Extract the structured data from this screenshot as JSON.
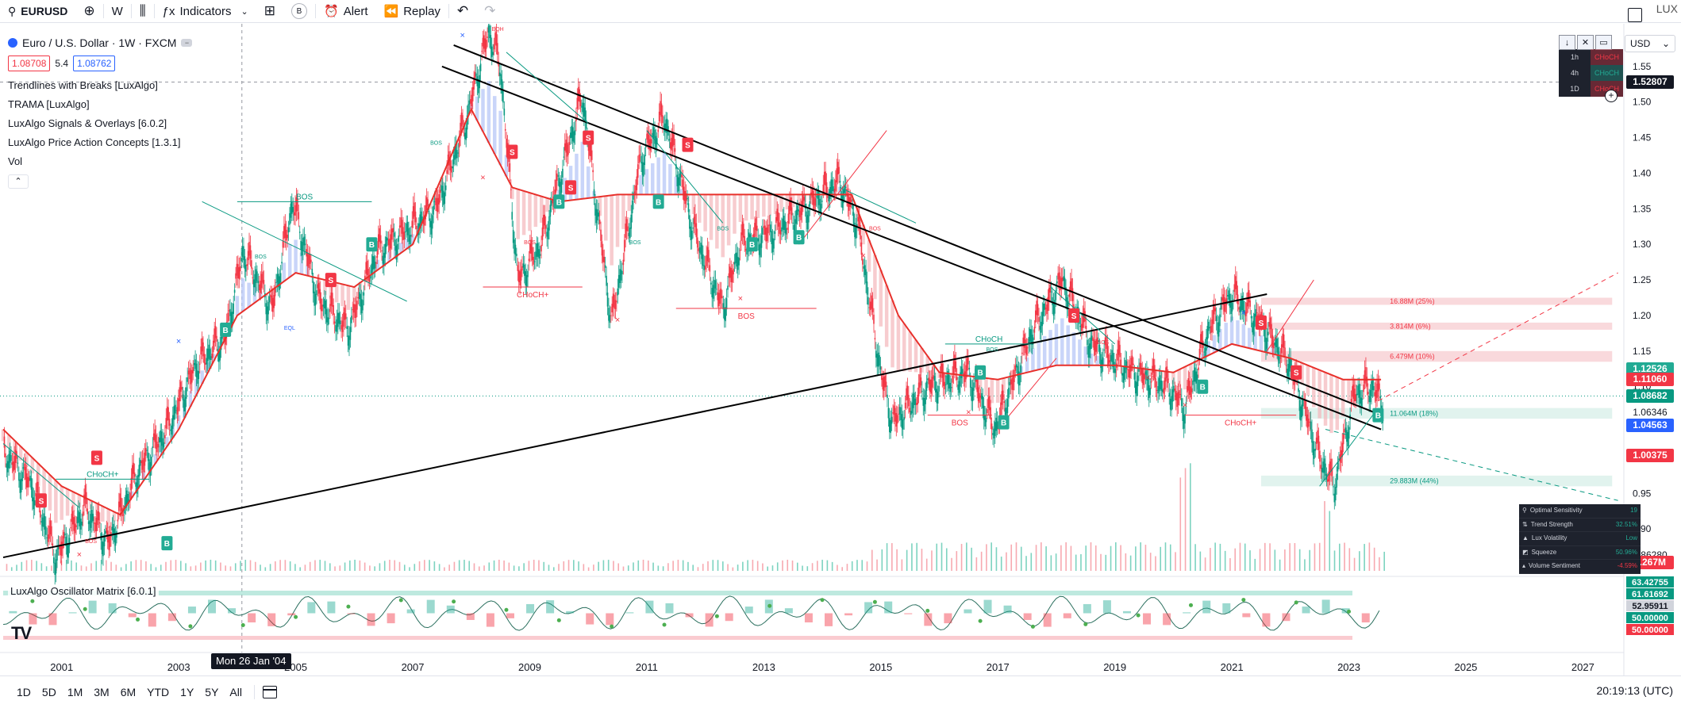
{
  "toolbar": {
    "symbol": "EURUSD",
    "interval": "W",
    "indicators_label": "Indicators",
    "badge": "B",
    "alert_label": "Alert",
    "replay_label": "Replay",
    "right_text": "LUX"
  },
  "legend": {
    "title": "Euro / U.S. Dollar · 1W · FXCM",
    "sell": "1.08708",
    "spread": "5.4",
    "buy": "1.08762",
    "indicators": [
      "Trendlines with Breaks [LuxAlgo]",
      "TRAMA [LuxAlgo]",
      "LuxAlgo Signals & Overlays [6.0.2]",
      "LuxAlgo Price Action Concepts [1.3.1]",
      "Vol"
    ]
  },
  "currency": "USD",
  "tf_table": {
    "rows": [
      {
        "tf": "1h",
        "sig": "CHoCH",
        "dir": "down"
      },
      {
        "tf": "4h",
        "sig": "CHoCH",
        "dir": "up"
      },
      {
        "tf": "1D",
        "sig": "CHoCH",
        "dir": "down"
      }
    ]
  },
  "price_badges": [
    {
      "text": "1.52807",
      "color": "#131722",
      "price": 1.52807
    },
    {
      "text": "1.12526",
      "color": "#22ab94",
      "price": 1.12526
    },
    {
      "text": "1.11060",
      "color": "#f23645",
      "price": 1.1106
    },
    {
      "text": "1.08682",
      "color": "#089981",
      "price": 1.08682
    },
    {
      "text": "1.06346",
      "color": "#ffffff",
      "price": 1.06346
    },
    {
      "text": "1.04563",
      "color": "#2962ff",
      "price": 1.04563
    },
    {
      "text": "1.00375",
      "color": "#f23645",
      "price": 1.00375
    },
    {
      "text": "0.86280",
      "color": "#ffffff",
      "price": 0.8628
    },
    {
      "text": "1.267M",
      "color": "#f23645",
      "price": 0.853
    }
  ],
  "osc_badges": [
    {
      "text": "63.42755",
      "color": "#089981"
    },
    {
      "text": "61.61692",
      "color": "#089981"
    },
    {
      "text": "52.95911",
      "color": "#d1d4dc"
    },
    {
      "text": "50.00000",
      "color": "#089981"
    },
    {
      "text": "50.00000",
      "color": "#f23645"
    }
  ],
  "osc_label": "LuxAlgo Oscillator Matrix [6.0.1]",
  "date_cursor": "Mon 26 Jan '04",
  "stats": [
    {
      "k": "Optimal Sensitivity",
      "v": "19",
      "cls": "v-green",
      "icon": "⚲"
    },
    {
      "k": "Trend Strength",
      "v": "32.51%",
      "cls": "v-green",
      "icon": "⇅"
    },
    {
      "k": "Lux Volatility",
      "v": "Low",
      "cls": "v-green",
      "icon": "▲"
    },
    {
      "k": "Squeeze",
      "v": "50.96%",
      "cls": "v-green",
      "icon": "◩"
    },
    {
      "k": "Volume Sentiment",
      "v": "-4.59%",
      "cls": "v-red",
      "icon": "▴"
    }
  ],
  "bottombar": {
    "ranges": [
      "1D",
      "5D",
      "1M",
      "3M",
      "6M",
      "YTD",
      "1Y",
      "5Y",
      "All"
    ],
    "clock": "20:19:13 (UTC)"
  },
  "chart_data": {
    "type": "line",
    "title": "Euro / U.S. Dollar · 1W · FXCM",
    "x_ticks": [
      "2001",
      "2003",
      "2005",
      "2007",
      "2009",
      "2011",
      "2013",
      "2015",
      "2017",
      "2019",
      "2021",
      "2023",
      "2025",
      "2027"
    ],
    "y_ticks": [
      1.55,
      1.5,
      1.45,
      1.4,
      1.35,
      1.3,
      1.25,
      1.2,
      1.15,
      1.1,
      1.05,
      1.0,
      0.95,
      0.9,
      0.85
    ],
    "ylim": [
      0.83,
      1.61
    ],
    "xlim": [
      2000.0,
      2027.7
    ],
    "series": [
      {
        "name": "EURUSD",
        "x": [
          2000.0,
          2000.5,
          2000.9,
          2001.4,
          2001.8,
          2002.3,
          2002.8,
          2003.3,
          2003.8,
          2004.1,
          2004.6,
          2004.95,
          2005.4,
          2005.9,
          2006.4,
          2006.9,
          2007.4,
          2007.9,
          2008.3,
          2008.5,
          2008.8,
          2009.2,
          2009.9,
          2010.4,
          2010.9,
          2011.3,
          2011.8,
          2012.3,
          2012.6,
          2013.2,
          2013.7,
          2014.3,
          2014.6,
          2015.0,
          2015.2,
          2015.8,
          2016.5,
          2016.95,
          2017.6,
          2018.1,
          2018.6,
          2019.3,
          2019.9,
          2020.2,
          2020.6,
          2021.0,
          2021.5,
          2022.0,
          2022.5,
          2022.75,
          2023.1,
          2023.4,
          2023.55
        ],
        "values": [
          1.01,
          0.96,
          0.86,
          0.93,
          0.88,
          0.98,
          1.04,
          1.13,
          1.17,
          1.29,
          1.21,
          1.36,
          1.22,
          1.18,
          1.29,
          1.32,
          1.35,
          1.47,
          1.6,
          1.55,
          1.25,
          1.3,
          1.51,
          1.19,
          1.42,
          1.48,
          1.32,
          1.21,
          1.3,
          1.32,
          1.35,
          1.39,
          1.33,
          1.12,
          1.05,
          1.1,
          1.12,
          1.04,
          1.18,
          1.25,
          1.16,
          1.12,
          1.1,
          1.07,
          1.18,
          1.23,
          1.19,
          1.13,
          1.0,
          0.96,
          1.09,
          1.1,
          1.08
        ]
      },
      {
        "name": "TRAMA",
        "x": [
          2000.0,
          2001.0,
          2002.0,
          2003.0,
          2004.0,
          2005.0,
          2006.0,
          2007.0,
          2008.0,
          2008.7,
          2009.5,
          2010.5,
          2011.5,
          2012.5,
          2013.5,
          2014.5,
          2015.3,
          2016.0,
          2017.0,
          2018.0,
          2019.0,
          2020.0,
          2021.0,
          2022.0,
          2022.9,
          2023.55
        ],
        "values": [
          1.04,
          0.96,
          0.92,
          1.04,
          1.2,
          1.26,
          1.24,
          1.3,
          1.49,
          1.38,
          1.36,
          1.37,
          1.37,
          1.37,
          1.37,
          1.37,
          1.2,
          1.12,
          1.11,
          1.13,
          1.13,
          1.12,
          1.16,
          1.14,
          1.11,
          1.11
        ]
      }
    ],
    "trendlines": [
      {
        "x": [
          2007.7,
          2023.55
        ],
        "values": [
          1.58,
          1.06
        ]
      },
      {
        "x": [
          2007.5,
          2023.55
        ],
        "values": [
          1.55,
          1.04
        ]
      },
      {
        "x": [
          2000.0,
          2021.6
        ],
        "values": [
          0.86,
          1.23
        ]
      }
    ],
    "labels": [
      "BOS",
      "CHoCH",
      "CHoCH+",
      "EQH",
      "EQL"
    ],
    "volume_profile": [
      "16.88M (25%)",
      "3.814M (6%)",
      "6.479M (10%)",
      "11.064M (18%)",
      "29.883M (44%)"
    ],
    "oscillator": {
      "ylim": [
        0,
        100
      ],
      "levels": [
        63.42755,
        61.61692,
        52.95911,
        50.0,
        50.0
      ]
    }
  }
}
